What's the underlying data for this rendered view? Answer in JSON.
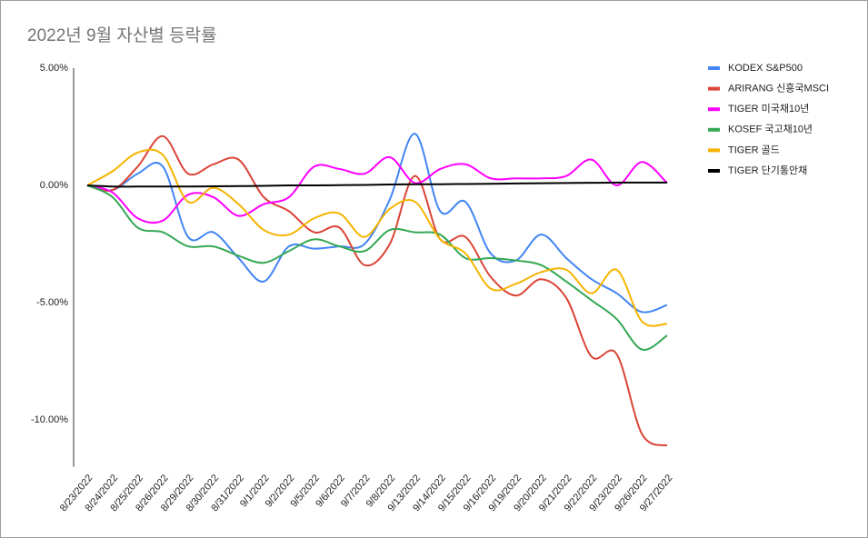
{
  "chart_data": {
    "type": "line",
    "title": "2022년 9월 자산별 등락률",
    "categories": [
      "8/23/2022",
      "8/24/2022",
      "8/25/2022",
      "8/26/2022",
      "8/29/2022",
      "8/30/2022",
      "8/31/2022",
      "9/1/2022",
      "9/2/2022",
      "9/5/2022",
      "9/6/2022",
      "9/7/2022",
      "9/8/2022",
      "9/13/2022",
      "9/14/2022",
      "9/15/2022",
      "9/16/2022",
      "9/19/2022",
      "9/20/2022",
      "9/21/2022",
      "9/22/2022",
      "9/23/2022",
      "9/26/2022",
      "9/27/2022"
    ],
    "series": [
      {
        "name": "KODEX S&P500",
        "color": "#4285f4",
        "values": [
          0,
          -0.2,
          0.5,
          0.8,
          -2.2,
          -2.0,
          -3.1,
          -4.1,
          -2.6,
          -2.7,
          -2.6,
          -2.5,
          -0.6,
          2.2,
          -1.1,
          -0.7,
          -2.9,
          -3.2,
          -2.1,
          -3.1,
          -4.0,
          -4.6,
          -5.4,
          -5.1
        ]
      },
      {
        "name": "ARIRANG 신흥국MSCI",
        "color": "#db4437",
        "values": [
          0,
          -0.2,
          0.8,
          2.1,
          0.5,
          0.9,
          1.1,
          -0.5,
          -1.1,
          -2.0,
          -1.8,
          -3.4,
          -2.5,
          0.4,
          -2.3,
          -2.2,
          -3.9,
          -4.7,
          -4.0,
          -4.8,
          -7.3,
          -7.2,
          -10.6,
          -11.1
        ]
      },
      {
        "name": "TIGER 미국채10년",
        "color": "#ff00ff",
        "values": [
          0,
          -0.3,
          -1.4,
          -1.5,
          -0.4,
          -0.5,
          -1.3,
          -0.8,
          -0.5,
          0.8,
          0.7,
          0.5,
          1.2,
          0.1,
          0.7,
          0.9,
          0.3,
          0.3,
          0.3,
          0.4,
          1.1,
          0,
          1.0,
          0.1
        ]
      },
      {
        "name": "KOSEF 국고채10년",
        "color": "#34a853",
        "values": [
          0,
          -0.5,
          -1.8,
          -2.0,
          -2.6,
          -2.6,
          -3.0,
          -3.3,
          -2.8,
          -2.3,
          -2.6,
          -2.8,
          -1.9,
          -2.0,
          -2.1,
          -3.1,
          -3.1,
          -3.2,
          -3.4,
          -4.1,
          -4.9,
          -5.7,
          -7.0,
          -6.4
        ]
      },
      {
        "name": "TIGER 골드",
        "color": "#f4b400",
        "values": [
          0,
          0.6,
          1.4,
          1.3,
          -0.7,
          -0.1,
          -0.8,
          -1.9,
          -2.1,
          -1.4,
          -1.2,
          -2.2,
          -1.0,
          -0.7,
          -2.3,
          -2.9,
          -4.4,
          -4.2,
          -3.7,
          -3.6,
          -4.6,
          -3.6,
          -5.8,
          -5.9
        ]
      },
      {
        "name": "TIGER 단기통안채",
        "color": "#000000",
        "values": [
          0,
          -0.05,
          -0.05,
          -0.05,
          -0.05,
          -0.04,
          -0.03,
          -0.02,
          0,
          0,
          0.01,
          0.02,
          0.04,
          0.05,
          0.05,
          0.06,
          0.07,
          0.08,
          0.09,
          0.1,
          0.11,
          0.12,
          0.12,
          0.12
        ]
      }
    ],
    "ylim": [
      -12,
      5
    ],
    "yticks": [
      {
        "value": 5,
        "label": "5.00%"
      },
      {
        "value": 0,
        "label": "0.00%"
      },
      {
        "value": -5,
        "label": "-5.00%"
      },
      {
        "value": -10,
        "label": "-10.00%"
      }
    ],
    "legend": "right",
    "smooth": true
  }
}
